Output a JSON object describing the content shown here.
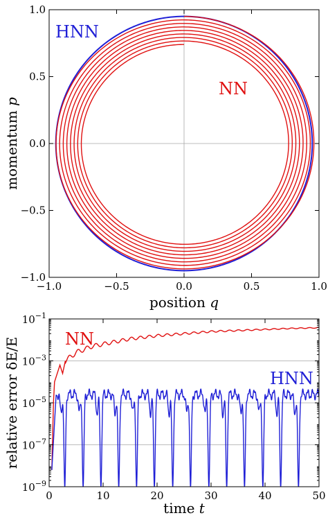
{
  "colors": {
    "hnn": "#1f1fd6",
    "nn": "#e01010",
    "grid": "#a6a6a6"
  },
  "chart_data": [
    {
      "type": "line",
      "xlabel": "position",
      "xlabel_var": "q",
      "ylabel": "momentum",
      "ylabel_var": "p",
      "xlim": [
        -1.0,
        1.0
      ],
      "ylim": [
        -1.0,
        1.0
      ],
      "x_ticks": [
        "−1.0",
        "−0.5",
        "0.0",
        "0.5",
        "1.0"
      ],
      "y_ticks": [
        "−1.0",
        "−0.5",
        "0.0",
        "0.5",
        "1.0"
      ],
      "gridlines": "zero-axes",
      "series": [
        {
          "name": "HNN",
          "color": "#1f1fd6",
          "shape": "closed-orbit",
          "radius": 0.95
        },
        {
          "name": "NN",
          "color": "#e01010",
          "shape": "inward-spiral",
          "radius_start": 0.95,
          "radius_end": 0.74,
          "turns": 8
        }
      ]
    },
    {
      "type": "line",
      "xlabel": "time",
      "xlabel_var": "t",
      "ylabel": "relative error δE/E",
      "xlim": [
        0,
        50
      ],
      "ylim_log10": [
        -9,
        -1
      ],
      "x_ticks": [
        "0",
        "10",
        "20",
        "30",
        "40",
        "50"
      ],
      "y_ticks": [
        {
          "base": "10",
          "exp": "−1",
          "value": -1
        },
        {
          "base": "10",
          "exp": "−3",
          "value": -3
        },
        {
          "base": "10",
          "exp": "−5",
          "value": -5
        },
        {
          "base": "10",
          "exp": "−7",
          "value": -7
        },
        {
          "base": "10",
          "exp": "−9",
          "value": -9
        }
      ],
      "gridlines": "horizontal at major ticks",
      "series": [
        {
          "name": "NN",
          "color": "#e01010",
          "t": [
            0.5,
            0.8,
            1.0,
            1.5,
            2.0,
            2.5,
            3,
            4,
            5,
            6,
            8,
            10,
            15,
            20,
            25,
            30,
            35,
            40,
            45,
            50
          ],
          "log10_error": [
            -8.2,
            -5.0,
            -4.0,
            -3.6,
            -3.2,
            -3.6,
            -3.0,
            -2.8,
            -2.6,
            -2.5,
            -2.3,
            -2.2,
            -1.95,
            -1.8,
            -1.7,
            -1.6,
            -1.55,
            -1.5,
            -1.45,
            -1.42
          ]
        },
        {
          "name": "HNN",
          "color": "#1f1fd6",
          "baseline_log10_error": -4.6,
          "dip_times": [
            2.9,
            6.3,
            9.6,
            12.9,
            16.2,
            19.5,
            22.9,
            26.2,
            29.6,
            32.9,
            36.2,
            39.6,
            42.9,
            46.2
          ],
          "dip_log10_min": -9.0
        }
      ]
    }
  ]
}
